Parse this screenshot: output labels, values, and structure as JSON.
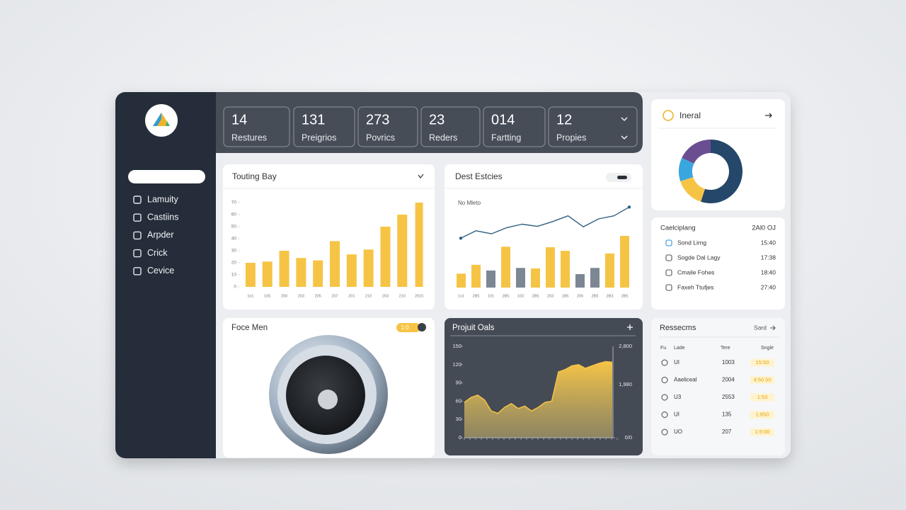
{
  "sidebar": {
    "nav": [
      "Lamuity",
      "Castiins",
      "Arpder",
      "Crick",
      "Cevice"
    ]
  },
  "stats": [
    {
      "value": 14,
      "label": "Restures"
    },
    {
      "value": 131,
      "label": "Preigrios"
    },
    {
      "value": 273,
      "label": "Povrics"
    },
    {
      "value": 23,
      "label": "Reders"
    },
    {
      "value": "014",
      "label": "Fartting"
    },
    {
      "value": 12,
      "label": "Propies"
    }
  ],
  "donut_card": {
    "title": "Ineral",
    "chart_data": {
      "type": "pie",
      "values": [
        55,
        15,
        12,
        18
      ],
      "colors": [
        "#24476a",
        "#f6c445",
        "#3aa6de",
        "#6b4d92"
      ]
    }
  },
  "list_card": {
    "title": "Caelciplang",
    "time": "2Al0 OJ",
    "rows": [
      {
        "name": "Sond Lirng",
        "time": "15:40"
      },
      {
        "name": "Sogde Dal Lagy",
        "time": "17:38"
      },
      {
        "name": "Cmaile Fohes",
        "time": "18:40"
      },
      {
        "name": "Faxeh Ttufjes",
        "time": "27:40"
      }
    ]
  },
  "bar_card": {
    "title": "Touting Bay",
    "chart_data": {
      "type": "bar",
      "categories": [
        "1o1",
        "105",
        "200",
        "203",
        "205",
        "207",
        "201",
        "210",
        "203",
        "210",
        "2015"
      ],
      "values": [
        20,
        21,
        30,
        24,
        22,
        38,
        27,
        31,
        50,
        60,
        70
      ],
      "color": "#f6c445",
      "ylim": [
        0,
        70
      ],
      "yticks": [
        0,
        10,
        20,
        30,
        40,
        50,
        60,
        70
      ]
    }
  },
  "line_card": {
    "title": "Dest Estcies",
    "subtitle": "No Mleto",
    "chart_data": {
      "type": "bar-line",
      "categories": [
        "1o1",
        "2B5",
        "101",
        "2B5",
        "103",
        "2B5",
        "203",
        "1B5",
        "206",
        "2B5",
        "2B3",
        "2B5"
      ],
      "bars": {
        "values": [
          27,
          44,
          33,
          79,
          38,
          37,
          78,
          71,
          26,
          38,
          66,
          100
        ],
        "colors": [
          "#f6c445",
          "#f6c445",
          "#7d8794",
          "#f6c445",
          "#7d8794",
          "#f6c445",
          "#f6c445",
          "#f6c445",
          "#7d8794",
          "#7d8794",
          "#f6c445",
          "#f6c445"
        ]
      },
      "line": {
        "values": [
          14,
          31,
          24,
          38,
          46,
          41,
          52,
          65,
          40,
          58,
          65,
          85
        ],
        "color": "#2f5f82"
      },
      "ylim": [
        0,
        100
      ]
    }
  },
  "speaker_card": {
    "title": "Foce Men",
    "badge": "1:0"
  },
  "area_card": {
    "title": "Projuit Oals",
    "chart_data": {
      "type": "area",
      "values": [
        58,
        66,
        70,
        62,
        44,
        40,
        50,
        56,
        48,
        52,
        44,
        50,
        58,
        60,
        108,
        112,
        118,
        120,
        114,
        118,
        122,
        125,
        124
      ],
      "color": "#f6c445",
      "ylim": [
        0,
        150
      ],
      "yticks": [
        0,
        30,
        60,
        90,
        120,
        150
      ],
      "right_labels": [
        "2,800",
        "1,980",
        "0/0"
      ]
    }
  },
  "table_card": {
    "title": "Ressecms",
    "link": "Sard",
    "header": [
      "Fu",
      "Lade",
      "Tere",
      "Sngle"
    ],
    "rows": [
      [
        "UI",
        "1003",
        "15:50"
      ],
      [
        "Aaeliceal",
        "2004",
        "4:50.50"
      ],
      [
        "U3",
        "2553",
        "1:53"
      ],
      [
        "UI",
        "135",
        "1:650"
      ],
      [
        "UO",
        "207",
        "1:5:00"
      ]
    ]
  }
}
